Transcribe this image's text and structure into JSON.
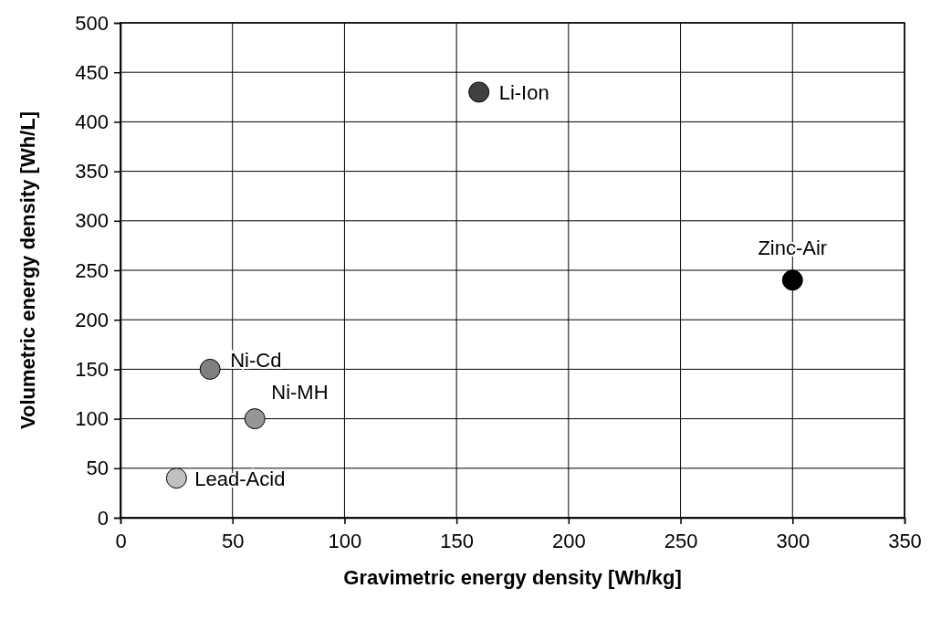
{
  "chart_data": {
    "type": "scatter",
    "xlabel": "Gravimetric energy density [Wh/kg]",
    "ylabel": "Volumetric energy density [Wh/L]",
    "xlim": [
      0,
      350
    ],
    "xticks": [
      0,
      50,
      100,
      150,
      200,
      250,
      300,
      350
    ],
    "ylim": [
      0,
      500
    ],
    "yticks": [
      0,
      50,
      100,
      150,
      200,
      250,
      300,
      350,
      400,
      450,
      500
    ],
    "grid": true,
    "marker": "circle",
    "series": [
      {
        "name": "Li-Ion",
        "color": "#404040",
        "x": [
          160
        ],
        "values": [
          430
        ]
      },
      {
        "name": "Zinc-Air",
        "color": "#000000",
        "x": [
          300
        ],
        "values": [
          240
        ]
      },
      {
        "name": "Ni-Cd",
        "color": "#808080",
        "x": [
          40
        ],
        "values": [
          150
        ]
      },
      {
        "name": "Ni-MH",
        "color": "#969696",
        "x": [
          60
        ],
        "values": [
          100
        ]
      },
      {
        "name": "Lead-Acid",
        "color": "#c0c0c0",
        "x": [
          25
        ],
        "values": [
          40
        ]
      }
    ]
  }
}
